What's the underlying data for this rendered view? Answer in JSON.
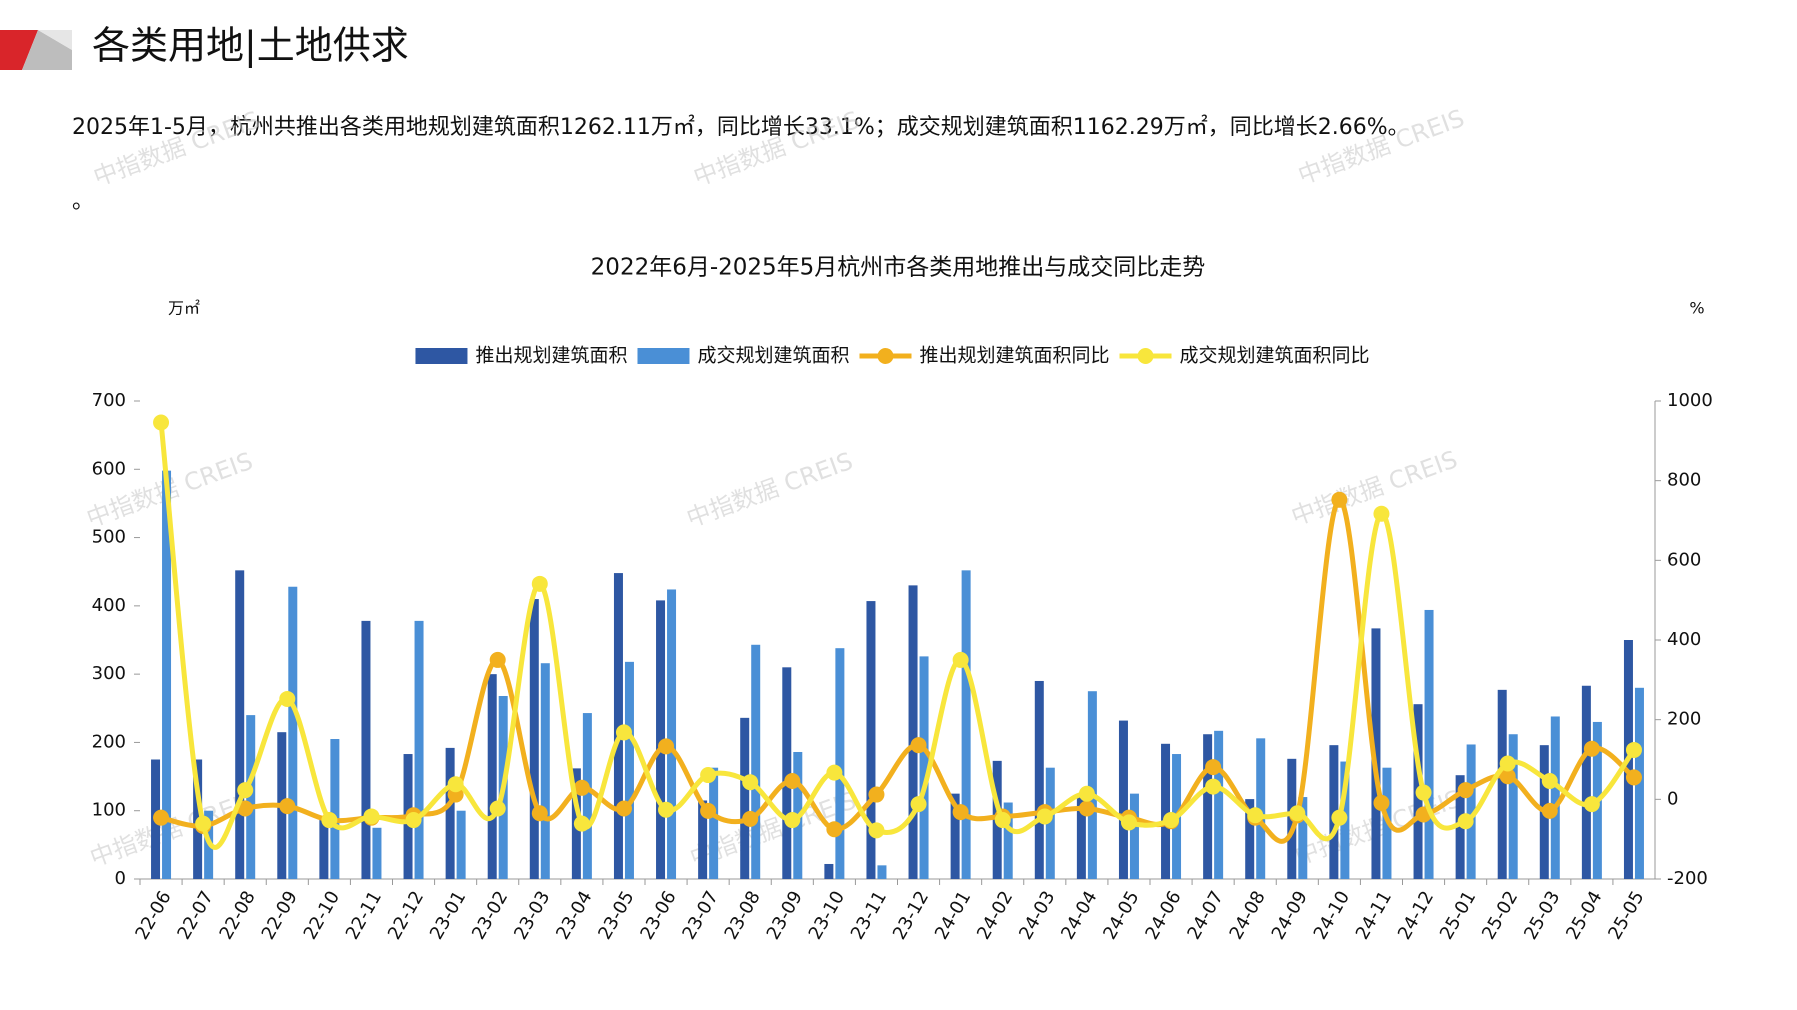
{
  "header": {
    "title": "各类用地|土地供求"
  },
  "paragraph": "2025年1-5月，杭州共推出各类用地规划建筑面积1262.11万㎡，同比增长33.1%；成交规划建筑面积1162.29万㎡，同比增长2.66%。",
  "paragraph_tail": "。",
  "watermark": "中指数据 CREIS",
  "chart_data": {
    "type": "combo",
    "title": "2022年6月-2025年5月杭州市各类用地推出与成交同比走势",
    "y_label": "万㎡",
    "y2_label": "%",
    "categories": [
      "22-06",
      "22-07",
      "22-08",
      "22-09",
      "22-10",
      "22-11",
      "22-12",
      "23-01",
      "23-02",
      "23-03",
      "23-04",
      "23-05",
      "23-06",
      "23-07",
      "23-08",
      "23-09",
      "23-10",
      "23-11",
      "23-12",
      "24-01",
      "24-02",
      "24-03",
      "24-04",
      "24-05",
      "24-06",
      "24-07",
      "24-08",
      "24-09",
      "24-10",
      "24-11",
      "24-12",
      "25-01",
      "25-02",
      "25-03",
      "25-04",
      "25-05"
    ],
    "series": [
      {
        "name": "推出规划建筑面积",
        "type": "bar",
        "color": "#2e57a3",
        "values": [
          175,
          175,
          452,
          215,
          90,
          378,
          183,
          192,
          300,
          410,
          162,
          448,
          408,
          115,
          236,
          310,
          22,
          407,
          430,
          125,
          173,
          290,
          120,
          232,
          198,
          212,
          117,
          176,
          196,
          367,
          256,
          152,
          277,
          196,
          283,
          350
        ]
      },
      {
        "name": "成交规划建筑面积",
        "type": "bar",
        "color": "#4a8fd6",
        "values": [
          598,
          100,
          240,
          428,
          205,
          75,
          378,
          100,
          268,
          316,
          243,
          318,
          424,
          163,
          343,
          186,
          338,
          20,
          326,
          452,
          112,
          163,
          275,
          125,
          183,
          217,
          206,
          120,
          172,
          163,
          394,
          197,
          212,
          238,
          230,
          280
        ]
      },
      {
        "name": "推出规划建筑面积同比",
        "type": "line",
        "axis": "y2",
        "color": "#f2b01e",
        "values": [
          -46,
          -67,
          -23,
          -17,
          -52,
          -46,
          -40,
          12,
          350,
          -35,
          29,
          -23,
          133,
          -29,
          -49,
          46,
          -75,
          12,
          136,
          -32,
          -43,
          -32,
          -23,
          -46,
          -55,
          81,
          -46,
          -40,
          752,
          -9,
          -38,
          23,
          58,
          -29,
          127,
          55
        ]
      },
      {
        "name": "成交规划建筑面积同比",
        "type": "line",
        "axis": "y2",
        "color": "#f8e63c",
        "values": [
          946,
          -61,
          23,
          252,
          -52,
          -43,
          -52,
          38,
          -23,
          541,
          -61,
          168,
          -26,
          61,
          43,
          -52,
          67,
          -78,
          -12,
          350,
          -52,
          -43,
          14,
          -58,
          -52,
          32,
          -40,
          -35,
          -46,
          717,
          17,
          -55,
          90,
          46,
          -12,
          124
        ]
      }
    ],
    "ylim": [
      0,
      700
    ],
    "yticks": [
      0,
      100,
      200,
      300,
      400,
      500,
      600,
      700
    ],
    "y2lim": [
      -200,
      1000
    ],
    "y2ticks": [
      -200,
      0,
      200,
      400,
      600,
      800,
      1000
    ],
    "legend": "top"
  }
}
